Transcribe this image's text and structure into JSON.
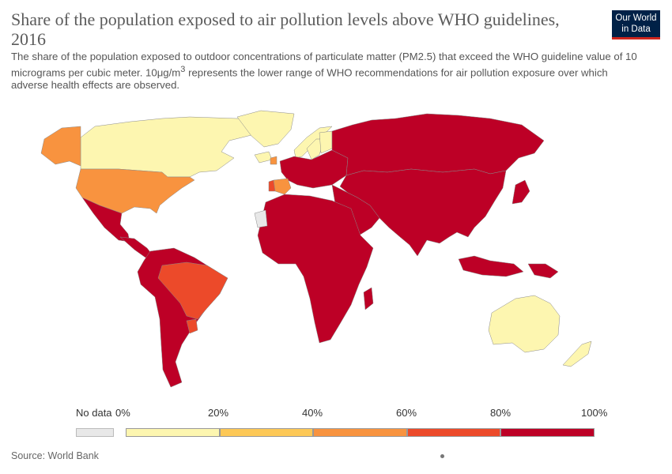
{
  "title": "Share of the population exposed to air pollution levels above WHO guidelines, 2016",
  "subtitle": {
    "part1": "The share of the population exposed to outdoor concentrations of particulate matter (PM2.5) that exceed the WHO guideline value of 10 micrograms per cubic meter. 10μg/m",
    "sup": "3",
    "part2": " represents the lower range of WHO recommendations for air pollution exposure over which adverse health effects are observed."
  },
  "logo": {
    "line1": "Our World",
    "line2": "in Data",
    "bg": "#002147",
    "accent": "#ce261e"
  },
  "source": "Source: World Bank",
  "legend": {
    "no_data_label": "No data",
    "no_data_color": "#e8e8e8",
    "ticks": [
      "0%",
      "20%",
      "40%",
      "60%",
      "80%",
      "100%"
    ],
    "colors": [
      "#fdf6b0",
      "#fdc856",
      "#f8933f",
      "#ec4a2a",
      "#bd0026"
    ]
  },
  "map_data": {
    "colors_by_bin": {
      "0-20": "#fdf6b0",
      "20-40": "#fdc856",
      "40-60": "#f8933f",
      "60-80": "#ec4a2a",
      "80-100": "#bd0026",
      "no_data": "#e8e8e8"
    },
    "regions": [
      {
        "name": "Canada",
        "bin": "0-20"
      },
      {
        "name": "Greenland",
        "bin": "0-20"
      },
      {
        "name": "Alaska",
        "bin": "40-60"
      },
      {
        "name": "United States",
        "bin": "40-60"
      },
      {
        "name": "Mexico",
        "bin": "80-100"
      },
      {
        "name": "Central America",
        "bin": "80-100"
      },
      {
        "name": "Brazil",
        "bin": "60-80"
      },
      {
        "name": "Uruguay",
        "bin": "60-80"
      },
      {
        "name": "South America (rest)",
        "bin": "80-100"
      },
      {
        "name": "Norway",
        "bin": "0-20"
      },
      {
        "name": "Sweden",
        "bin": "0-20"
      },
      {
        "name": "Finland",
        "bin": "0-20"
      },
      {
        "name": "Iceland",
        "bin": "0-20"
      },
      {
        "name": "Ireland",
        "bin": "40-60"
      },
      {
        "name": "Spain",
        "bin": "40-60"
      },
      {
        "name": "Portugal",
        "bin": "60-80"
      },
      {
        "name": "Europe (rest)",
        "bin": "80-100"
      },
      {
        "name": "Russia",
        "bin": "80-100"
      },
      {
        "name": "Africa",
        "bin": "80-100"
      },
      {
        "name": "Western Sahara",
        "bin": "no_data"
      },
      {
        "name": "Middle East",
        "bin": "80-100"
      },
      {
        "name": "Asia",
        "bin": "80-100"
      },
      {
        "name": "Indonesia",
        "bin": "80-100"
      },
      {
        "name": "Papua New Guinea",
        "bin": "80-100"
      },
      {
        "name": "Australia",
        "bin": "0-20"
      },
      {
        "name": "New Zealand",
        "bin": "0-20"
      }
    ]
  }
}
